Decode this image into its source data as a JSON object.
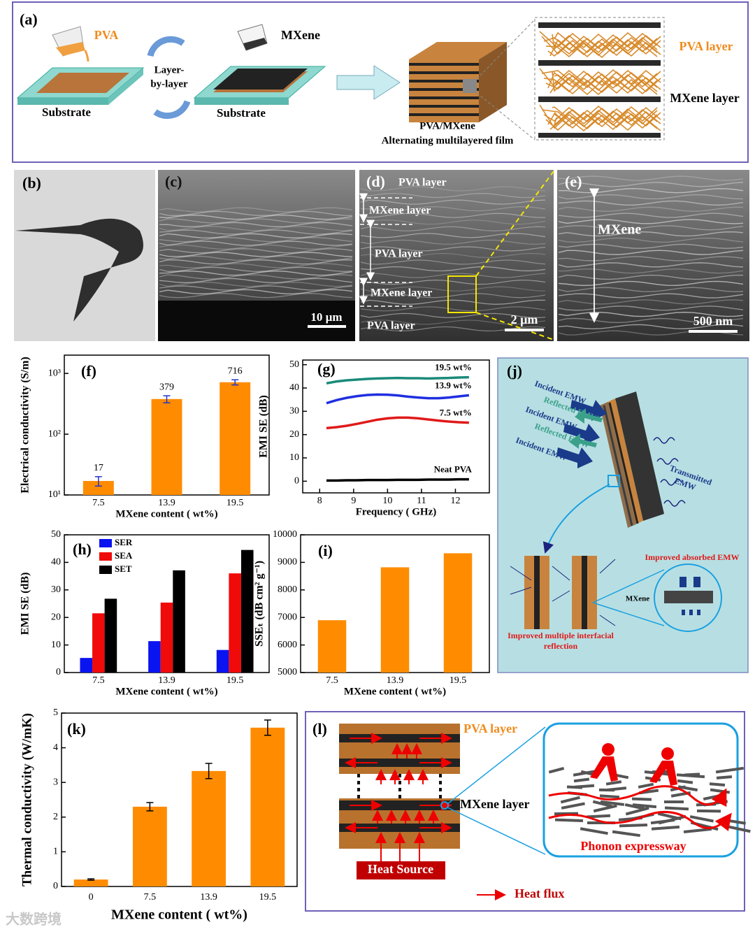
{
  "panels": {
    "a": {
      "label": "(a)",
      "pva": "PVA",
      "substrate_1": "Substrate",
      "layer_by_layer": [
        "Layer-",
        "by-layer"
      ],
      "mxene": "MXene",
      "substrate_2": "Substrate",
      "film": [
        "PVA/MXene",
        "Alternating multilayered film"
      ],
      "pva_layer": "PVA layer",
      "mxene_layer": "MXene layer"
    },
    "b": {
      "label": "(b)"
    },
    "c": {
      "label": "(c)",
      "scale": "10 µm"
    },
    "d": {
      "label": "(d)",
      "layers": [
        "PVA layer",
        "MXene layer",
        "PVA layer",
        "MXene layer",
        "PVA layer"
      ],
      "scale": "2 µm"
    },
    "e": {
      "label": "(e)",
      "mxene": "MXene",
      "scale": "500 nm"
    },
    "j": {
      "label": "(j)",
      "incident": [
        "Incident EMW",
        "Incident EMW",
        "Incident EMW"
      ],
      "reflected": [
        "Reflected EMW",
        "Reflected EMW"
      ],
      "transmitted": [
        "Transmitted",
        "EMW"
      ],
      "absorbed": "Improved absorbed EMW",
      "mxene": "MXene",
      "reflection": [
        "Improved multiple interfacial",
        "reflection"
      ]
    },
    "l": {
      "label": "(l)",
      "pva_layer": "PVA layer",
      "mxene_layer": "MXene layer",
      "heat_source": "Heat Source",
      "phonon": "Phonon expressway",
      "heat_flux": "Heat flux"
    }
  },
  "chart_data": [
    {
      "type": "bar",
      "label": "(f)",
      "ylabel": "Electrical conductivity (S/m)",
      "xlabel": "MXene content ( wt%)",
      "categories": [
        "7.5",
        "13.9",
        "19.5"
      ],
      "values": [
        17,
        379,
        716
      ],
      "errors": [
        3,
        50,
        70
      ],
      "data_labels": true,
      "color": "#ff8c00",
      "error_color": "#2233cc",
      "log_y": true,
      "ylim": [
        10,
        2000
      ],
      "yticks": [
        {
          "value": 10,
          "label": "10¹"
        },
        {
          "value": 100,
          "label": "10²"
        },
        {
          "value": 1000,
          "label": "10³"
        }
      ]
    },
    {
      "type": "line",
      "label": "(g)",
      "ylabel": "EMI SE (dB)",
      "xlabel": "Frequency ( GHz)",
      "x": [
        8.2,
        8.5,
        8.8,
        9.1,
        9.4,
        9.7,
        10.0,
        10.3,
        10.6,
        10.9,
        11.2,
        11.5,
        11.8,
        12.1,
        12.4
      ],
      "series": [
        {
          "name": "19.5 wt%",
          "color": "#1a8a7a",
          "values": [
            42.0,
            42.8,
            43.3,
            43.6,
            43.9,
            44.1,
            44.2,
            44.3,
            44.2,
            44.2,
            44.1,
            44.2,
            44.3,
            44.5,
            44.6
          ]
        },
        {
          "name": "13.9 wt%",
          "color": "#1f2fe0",
          "values": [
            33.5,
            34.8,
            35.8,
            36.5,
            37.0,
            37.2,
            37.1,
            36.8,
            36.3,
            35.9,
            35.6,
            35.6,
            35.9,
            36.4,
            36.9
          ]
        },
        {
          "name": "7.5 wt%",
          "color": "#e01a1a",
          "values": [
            22.8,
            23.2,
            23.8,
            24.6,
            25.5,
            26.4,
            27.0,
            27.3,
            27.3,
            27.0,
            26.5,
            26.0,
            25.6,
            25.3,
            25.1
          ]
        },
        {
          "name": "Neat PVA",
          "color": "#000000",
          "values": [
            0.3,
            0.3,
            0.4,
            0.4,
            0.5,
            0.5,
            0.5,
            0.6,
            0.6,
            0.6,
            0.7,
            0.7,
            0.7,
            0.8,
            0.8
          ]
        }
      ],
      "legend": "inline",
      "xlim": [
        7.5,
        13
      ],
      "xticks": [
        8,
        9,
        10,
        11,
        12
      ],
      "ylim": [
        -5,
        52
      ],
      "yticks": [
        0,
        10,
        20,
        30,
        40,
        50
      ]
    },
    {
      "type": "grouped_bar",
      "label": "(h)",
      "ylabel": "EMI SE (dB)",
      "xlabel": "MXene content ( wt%)",
      "categories": [
        "7.5",
        "13.9",
        "19.5"
      ],
      "series": [
        {
          "name": "SER",
          "color": "#0a14f0",
          "values": [
            5.3,
            11.4,
            8.2
          ]
        },
        {
          "name": "SEA",
          "color": "#f00a0a",
          "values": [
            21.5,
            25.4,
            36
          ]
        },
        {
          "name": "SET",
          "color": "#000000",
          "values": [
            26.8,
            37.1,
            44.5
          ]
        }
      ],
      "legend": "upper left",
      "ylim": [
        0,
        50
      ],
      "yticks": [
        0,
        10,
        20,
        30,
        40,
        50
      ]
    },
    {
      "type": "bar",
      "label": "(i)",
      "ylabel": "SSEₜ (dB cm² g⁻¹)",
      "xlabel": "MXene content ( wt%)",
      "categories": [
        "7.5",
        "13.9",
        "19.5"
      ],
      "values": [
        6900,
        8820,
        9330
      ],
      "color": "#ff8c00",
      "ylim": [
        5000,
        10000
      ],
      "yticks": [
        5000,
        6000,
        7000,
        8000,
        9000,
        10000
      ]
    },
    {
      "type": "bar",
      "label": "(k)",
      "ylabel": "Thermal conductivity (W/mK)",
      "xlabel": "MXene content ( wt%)",
      "categories": [
        "0",
        "7.5",
        "13.9",
        "19.5"
      ],
      "values": [
        0.2,
        2.3,
        3.33,
        4.58
      ],
      "errors": [
        0.02,
        0.12,
        0.22,
        0.22
      ],
      "color": "#ff8c00",
      "error_color": "#000000",
      "ylim": [
        0,
        5
      ],
      "yticks": [
        0,
        1,
        2,
        3,
        4,
        5
      ]
    }
  ],
  "watermark": "大数跨境"
}
